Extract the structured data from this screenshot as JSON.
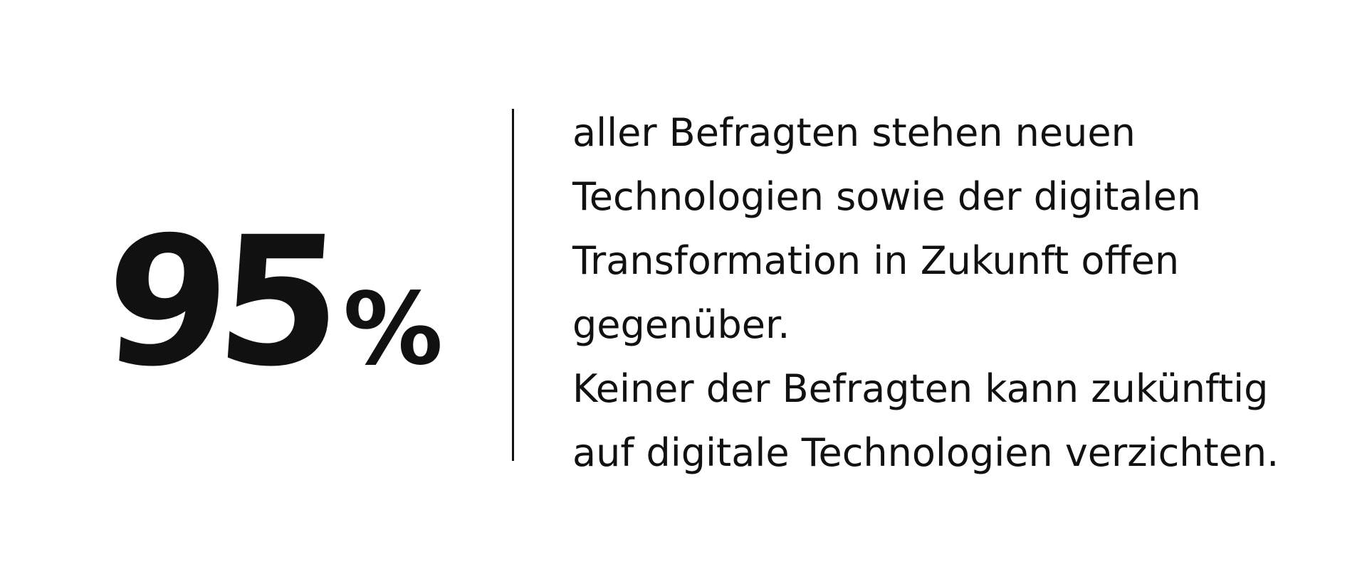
{
  "stat": {
    "number": "95",
    "unit": "%"
  },
  "description": {
    "lines": [
      "aller Befragten stehen neuen",
      "Technologien sowie der digitalen",
      "Transformation in Zukunft offen",
      "gegenüber.",
      "Keiner der Befragten kann zukünftig",
      "auf digitale Technologien verzichten."
    ]
  },
  "colors": {
    "text": "#111111",
    "background": "#ffffff"
  }
}
